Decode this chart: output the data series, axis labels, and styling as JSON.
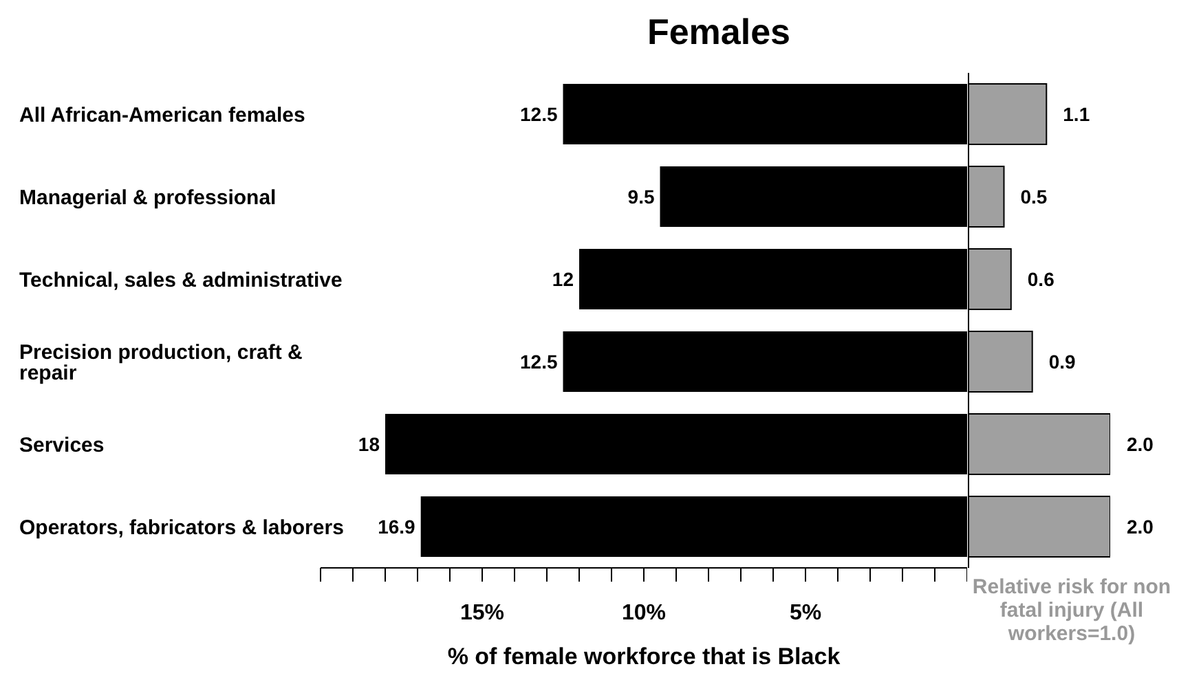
{
  "chart_data": [
    {
      "type": "bar",
      "orientation": "horizontal",
      "title": "Females",
      "categories": [
        "All African-American females",
        "Managerial & professional",
        "Technical, sales & administrative",
        "Precision production, craft & repair",
        "Services",
        "Operators, fabricators & laborers"
      ],
      "values": [
        12.5,
        9.5,
        12,
        12.5,
        18,
        16.9
      ],
      "color": "#000000",
      "xlim": [
        20,
        0
      ],
      "xticks": [
        {
          "value": 20,
          "label": null
        },
        {
          "value": 19,
          "label": null
        },
        {
          "value": 18,
          "label": null
        },
        {
          "value": 17,
          "label": null
        },
        {
          "value": 16,
          "label": null
        },
        {
          "value": 15,
          "label": "15%"
        },
        {
          "value": 14,
          "label": null
        },
        {
          "value": 13,
          "label": null
        },
        {
          "value": 12,
          "label": null
        },
        {
          "value": 11,
          "label": null
        },
        {
          "value": 10,
          "label": "10%"
        },
        {
          "value": 9,
          "label": null
        },
        {
          "value": 8,
          "label": null
        },
        {
          "value": 7,
          "label": null
        },
        {
          "value": 6,
          "label": null
        },
        {
          "value": 5,
          "label": "5%"
        },
        {
          "value": 4,
          "label": null
        },
        {
          "value": 3,
          "label": null
        },
        {
          "value": 2,
          "label": null
        },
        {
          "value": 1,
          "label": null
        },
        {
          "value": 0,
          "label": null
        }
      ],
      "xlabel": "% of female workforce that is Black",
      "data_labels": true,
      "grid": false,
      "legend": false
    },
    {
      "type": "bar",
      "orientation": "horizontal",
      "values": [
        1.1,
        0.5,
        0.6,
        0.9,
        2.0,
        2.0
      ],
      "value_labels": [
        "1.1",
        "0.5",
        "0.6",
        "0.9",
        "2.0",
        "2.0"
      ],
      "color": "#a0a0a0",
      "xlabel": "Relative risk for non fatal injury (All workers=1.0)",
      "tick_labels": false,
      "grid": false,
      "legend": false
    }
  ]
}
